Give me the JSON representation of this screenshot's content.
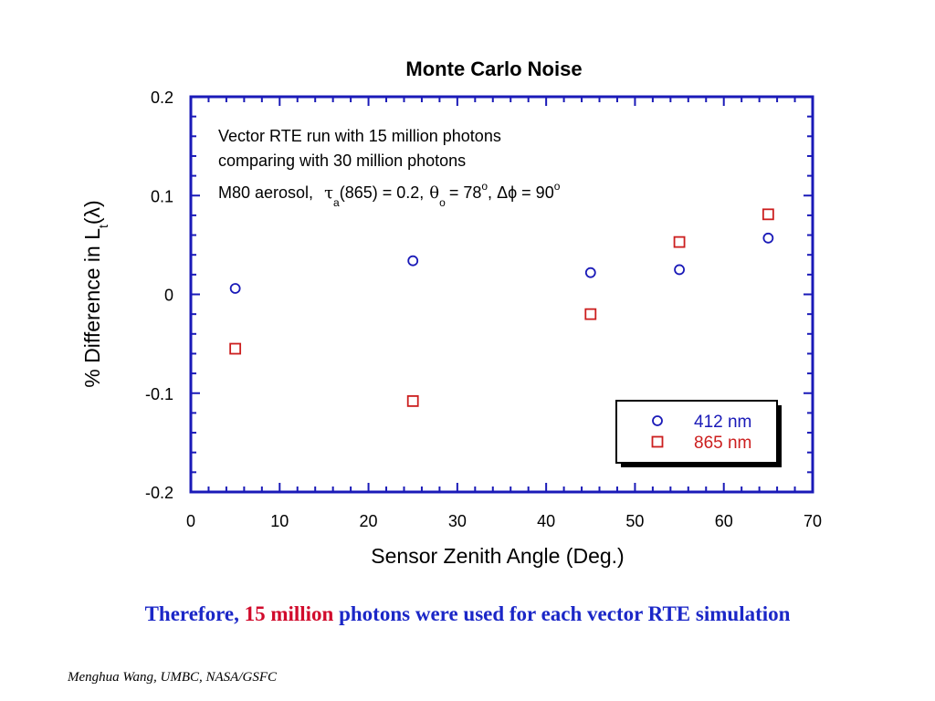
{
  "chart_data": {
    "type": "scatter",
    "title": "Monte Carlo Noise",
    "xlabel": "Sensor Zenith Angle (Deg.)",
    "ylabel": {
      "main": "% Difference in L",
      "subscript": "t",
      "suffix": "(λ)"
    },
    "xlim": [
      0,
      70
    ],
    "ylim": [
      -0.2,
      0.2
    ],
    "x_ticks": [
      "0",
      "10",
      "20",
      "30",
      "40",
      "50",
      "60",
      "70"
    ],
    "y_ticks": [
      "-0.2",
      "-0.1",
      "0",
      "0.1",
      "0.2"
    ],
    "annotations": {
      "line1": "Vector RTE run with 15 million photons",
      "line2": "comparing with 30 million photons",
      "line3": {
        "prefix": "M80 aerosol,",
        "tau": "τ",
        "tau_sub": "a",
        "tau_expr": "(865) = 0.2,",
        "theta": "θ",
        "theta_sub": "o",
        "theta_expr": "= 78",
        "theta_sup": "o",
        "comma": ",",
        "delta_phi": "Δϕ = 90",
        "phi_sup": "o"
      }
    },
    "legend_position": "bottom-right",
    "series": [
      {
        "name": "412 nm",
        "marker": "circle",
        "color": "#1a1ab8",
        "points": [
          [
            5,
            0.006
          ],
          [
            25,
            0.034
          ],
          [
            45,
            0.022
          ],
          [
            55,
            0.025
          ],
          [
            65,
            0.057
          ]
        ]
      },
      {
        "name": "865 nm",
        "marker": "square",
        "color": "#cc1f1f",
        "points": [
          [
            5,
            -0.055
          ],
          [
            25,
            -0.108
          ],
          [
            45,
            -0.02
          ],
          [
            55,
            0.053
          ],
          [
            65,
            0.081
          ]
        ]
      }
    ]
  },
  "caption": {
    "part1": "Therefore, ",
    "part2": "15 million",
    "part3": " photons were used for each vector RTE simulation"
  },
  "colors": {
    "caption_blue": "#1b27c7",
    "caption_red": "#d10b2c",
    "axis_blue": "#1a1ab8"
  },
  "footer": "Menghua Wang, UMBC, NASA/GSFC"
}
